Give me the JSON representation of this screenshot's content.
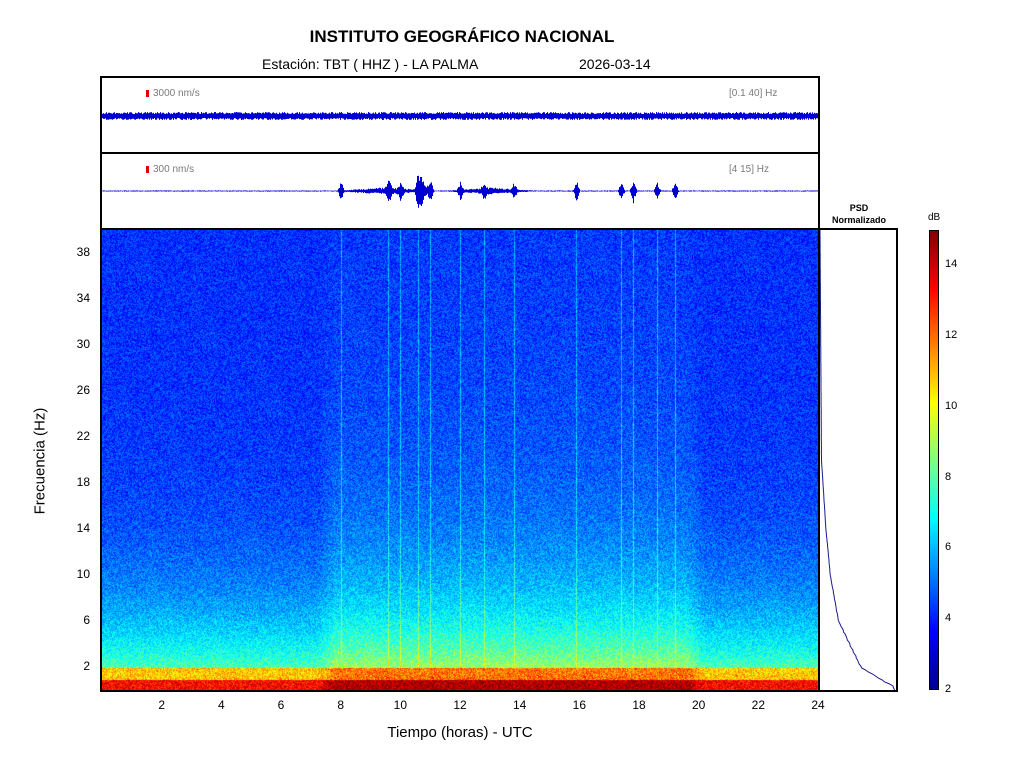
{
  "title": "INSTITUTO GEOGRÁFICO NACIONAL",
  "station_label": "Estación:  TBT ( HHZ ) - LA PALMA",
  "date": "2026-03-14",
  "trace_panels": [
    {
      "scale_label": "3000 nm/s",
      "band_label": "[0.1 40] Hz"
    },
    {
      "scale_label": "300 nm/s",
      "band_label": "[4 15] Hz"
    }
  ],
  "psd_title_line1": "PSD",
  "psd_title_line2": "Normalizado",
  "colorbar": {
    "unit": "dB",
    "ticks": [
      "14",
      "12",
      "10",
      "8",
      "6",
      "4",
      "2"
    ],
    "range": [
      2,
      15
    ],
    "colors": [
      "#00008f",
      "#0000ff",
      "#0080ff",
      "#00ffff",
      "#80ff80",
      "#ffff00",
      "#ff8000",
      "#ff0000",
      "#800000"
    ]
  },
  "chart_data": {
    "type": "heatmap",
    "xlabel": "Tiempo (horas) - UTC",
    "ylabel": "Frecuencia  (Hz)",
    "xlim": [
      0,
      24
    ],
    "ylim": [
      0,
      40
    ],
    "x_ticks": [
      "2",
      "4",
      "6",
      "8",
      "10",
      "12",
      "14",
      "16",
      "18",
      "20",
      "22",
      "24"
    ],
    "y_ticks": [
      "38",
      "34",
      "30",
      "26",
      "22",
      "18",
      "14",
      "10",
      "6",
      "2"
    ],
    "activity_window_hours": [
      7.8,
      19.6
    ],
    "event_lines_hours": [
      8.0,
      9.6,
      10.0,
      10.6,
      11.0,
      12.0,
      12.8,
      13.8,
      15.9,
      17.4,
      17.8,
      18.6,
      19.2
    ],
    "psd_curve": [
      {
        "freq": 40,
        "psd": 0.0
      },
      {
        "freq": 30,
        "psd": 0.01
      },
      {
        "freq": 20,
        "psd": 0.02
      },
      {
        "freq": 18,
        "psd": 0.04
      },
      {
        "freq": 14,
        "psd": 0.08
      },
      {
        "freq": 10,
        "psd": 0.14
      },
      {
        "freq": 6,
        "psd": 0.25
      },
      {
        "freq": 4,
        "psd": 0.4
      },
      {
        "freq": 2,
        "psd": 0.55
      },
      {
        "freq": 1,
        "psd": 0.8
      },
      {
        "freq": 0.3,
        "psd": 1.0
      }
    ]
  }
}
